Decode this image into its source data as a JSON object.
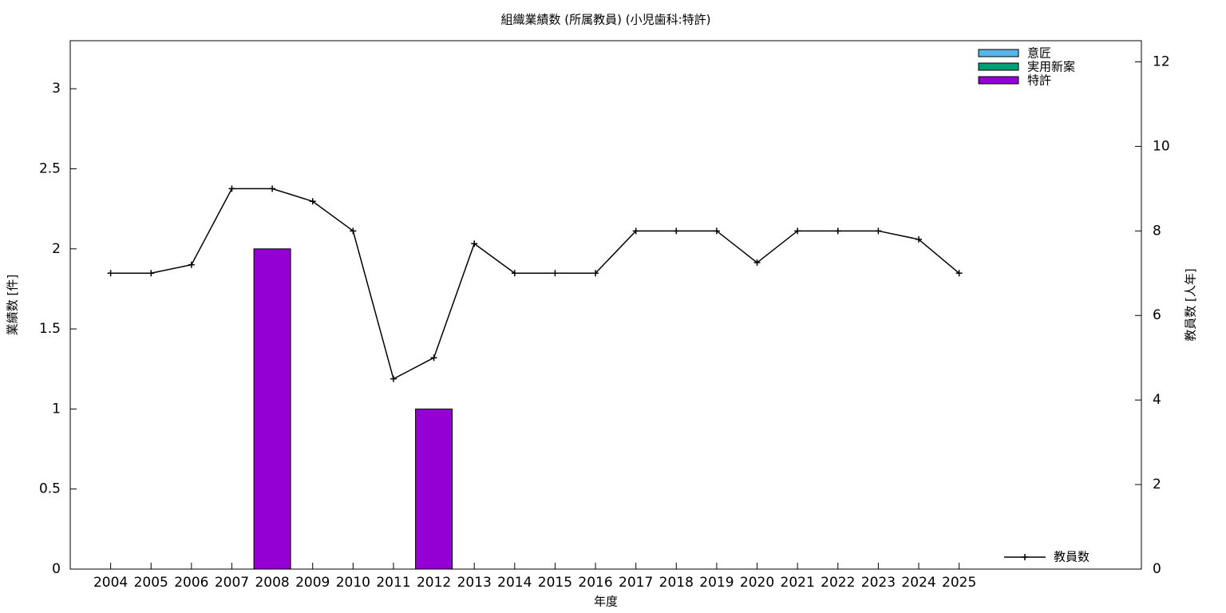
{
  "chart_data": {
    "type": "bar",
    "title": "組織業績数 (所属教員) (小児歯科:特許)",
    "x_label": "年度",
    "y_label": "業績数 [件]",
    "y2_label": "教員数 [人年]",
    "categories": [
      "2004",
      "2005",
      "2006",
      "2007",
      "2008",
      "2009",
      "2010",
      "2011",
      "2012",
      "2013",
      "2014",
      "2015",
      "2016",
      "2017",
      "2018",
      "2019",
      "2020",
      "2021",
      "2022",
      "2023",
      "2024",
      "2025"
    ],
    "series": [
      {
        "name": "意匠",
        "color": "#56b4e9",
        "values": [
          0,
          0,
          0,
          0,
          0,
          0,
          0,
          0,
          0,
          0,
          0,
          0,
          0,
          0,
          0,
          0,
          0,
          0,
          0,
          0,
          0,
          0
        ]
      },
      {
        "name": "実用新案",
        "color": "#009e73",
        "values": [
          0,
          0,
          0,
          0,
          0,
          0,
          0,
          0,
          0,
          0,
          0,
          0,
          0,
          0,
          0,
          0,
          0,
          0,
          0,
          0,
          0,
          0
        ]
      },
      {
        "name": "特許",
        "color": "#9400d3",
        "values": [
          0,
          0,
          0,
          0,
          2,
          0,
          0,
          0,
          1,
          0,
          0,
          0,
          0,
          0,
          0,
          0,
          0,
          0,
          0,
          0,
          0,
          0
        ]
      },
      {
        "name": "教員数",
        "color": "#000000",
        "type": "line",
        "axis": "y2",
        "values": [
          7,
          7,
          7.2,
          9,
          9,
          8.7,
          8,
          4.5,
          5,
          7.7,
          7,
          7,
          7,
          8,
          8,
          8,
          7.25,
          8,
          8,
          8,
          7.8,
          7
        ]
      }
    ],
    "ylim": [
      0,
      3.3
    ],
    "yticks": [
      0,
      0.5,
      1,
      1.5,
      2,
      2.5,
      3
    ],
    "y2lim": [
      0,
      12.5
    ],
    "y2ticks": [
      0,
      2,
      4,
      6,
      8,
      10,
      12
    ]
  }
}
